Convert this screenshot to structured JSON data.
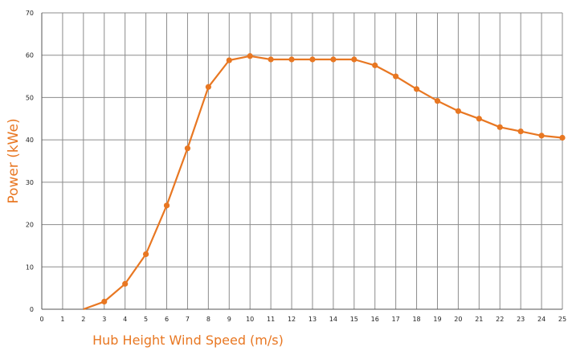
{
  "chart_data": {
    "type": "line",
    "title": "",
    "xlabel": "Hub Height Wind Speed (m/s)",
    "ylabel": "Power (kWe)",
    "xlim": [
      0,
      25
    ],
    "ylim": [
      0,
      70
    ],
    "x_ticks": [
      0,
      1,
      2,
      3,
      4,
      5,
      6,
      7,
      8,
      9,
      10,
      11,
      12,
      13,
      14,
      15,
      16,
      17,
      18,
      19,
      20,
      21,
      22,
      23,
      24,
      25
    ],
    "y_ticks": [
      0,
      10,
      20,
      30,
      40,
      50,
      60,
      70
    ],
    "grid": true,
    "legend": "none",
    "series": [
      {
        "color": "#E87722",
        "x": [
          2,
          3,
          4,
          5,
          6,
          7,
          8,
          9,
          10,
          11,
          12,
          13,
          14,
          15,
          16,
          17,
          18,
          19,
          20,
          21,
          22,
          23,
          24,
          25
        ],
        "y": [
          0,
          1.8,
          6,
          13,
          24.5,
          38,
          52.5,
          58.8,
          59.8,
          59,
          59,
          59,
          59,
          59,
          57.6,
          55,
          52,
          49.2,
          46.8,
          45,
          43,
          42,
          41,
          40.5
        ],
        "markers": [
          false,
          true,
          true,
          true,
          true,
          true,
          true,
          true,
          true,
          true,
          true,
          true,
          true,
          true,
          true,
          true,
          true,
          true,
          true,
          true,
          true,
          true,
          true,
          true
        ]
      }
    ]
  }
}
